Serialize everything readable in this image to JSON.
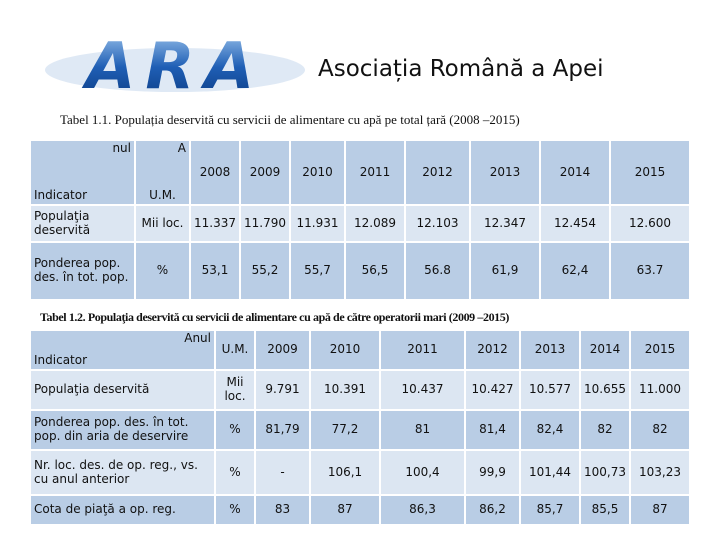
{
  "header": {
    "logo": "ARA",
    "title": "Asociația Română a Apei"
  },
  "table1": {
    "caption": "Tabel 1.1. Populația deservită cu servicii de alimentare cu apă pe total țară (2008 –2015)",
    "header": [
      [
        "nul",
        "Indicator"
      ],
      [
        "A",
        "U.M."
      ],
      "2008",
      "2009",
      "2010",
      "2011",
      "2012",
      "2013",
      "2014",
      "2015"
    ],
    "rows": [
      [
        "Populaţia deservită",
        "Mii loc.",
        "11.337",
        "11.790",
        "11.931",
        "12.089",
        "12.103",
        "12.347",
        "12.454",
        "12.600"
      ],
      [
        "Ponderea pop. des. în tot. pop.",
        "%",
        "53,1",
        "55,2",
        "55,7",
        "56,5",
        "56.8",
        "61,9",
        "62,4",
        "63.7"
      ]
    ]
  },
  "table2": {
    "caption": "Tabel 1.2. Populaţia deservită cu servicii de alimentare cu apă de către operatorii mari (2009 –2015)",
    "header": [
      [
        "Anul",
        "Indicator"
      ],
      "U.M.",
      "2009",
      "2010",
      "2011",
      "2012",
      "2013",
      "2014",
      "2015"
    ],
    "rows": [
      [
        "Populaţia deservită",
        "Mii loc.",
        "9.791",
        "10.391",
        "10.437",
        "10.427",
        "10.577",
        "10.655",
        "11.000"
      ],
      [
        "Ponderea pop. des. în tot. pop. din aria de deservire",
        "%",
        "81,79",
        "77,2",
        "81",
        "81,4",
        "82,4",
        "82",
        "82"
      ],
      [
        "Nr. loc. des. de op. reg., vs. cu anul anterior",
        "%",
        "-",
        "106,1",
        "100,4",
        "99,9",
        "101,44",
        "100,73",
        "103,23"
      ],
      [
        "Cota de piaţă a op. reg.",
        "%",
        "83",
        "87",
        "86,3",
        "86,2",
        "85,7",
        "85,5",
        "87"
      ]
    ]
  }
}
